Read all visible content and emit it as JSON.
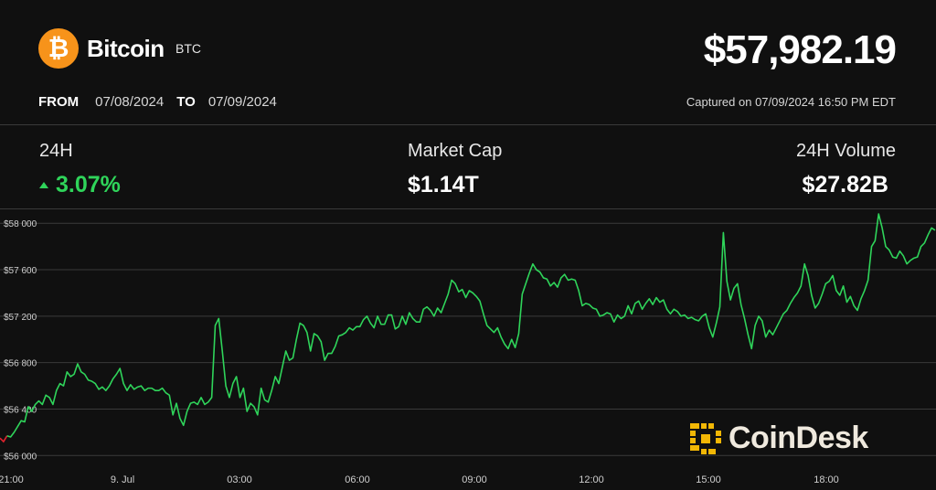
{
  "coin": {
    "name": "Bitcoin",
    "ticker": "BTC",
    "logo_symbol": "₿",
    "logo_color": "#f7931a"
  },
  "price": "$57,982.19",
  "range": {
    "from_label": "FROM",
    "from_date": "07/08/2024",
    "to_label": "TO",
    "to_date": "07/09/2024"
  },
  "captured": "Captured on 07/09/2024 16:50 PM EDT",
  "stats": {
    "change_label": "24H",
    "change_value": "3.07%",
    "market_cap_label": "Market Cap",
    "market_cap_value": "$1.14T",
    "volume_label": "24H Volume",
    "volume_value": "$27.82B"
  },
  "watermark": {
    "text": "CoinDesk",
    "icon": "coindesk-logo-icon",
    "color": "#f2b705"
  },
  "chart_data": {
    "type": "line",
    "title": "",
    "xlabel": "",
    "ylabel": "",
    "x_ticks": [
      "21:00",
      "9. Jul",
      "03:00",
      "06:00",
      "09:00",
      "12:00",
      "15:00",
      "18:00"
    ],
    "y_ticks": [
      "$56 000",
      "$56 400",
      "$56 800",
      "$57 200",
      "$57 600",
      "$58 000"
    ],
    "ylim": [
      55900,
      58120
    ],
    "grid": "horizontal",
    "colors": {
      "up": "#2fd45a",
      "down": "#e0232e",
      "grid": "#3a3a3a",
      "tick": "#cfcfcf"
    },
    "series": [
      {
        "values": [
          56150,
          56120,
          56170,
          56160,
          56200,
          56250,
          56300,
          56290,
          56420,
          56380,
          56440,
          56470,
          56440,
          56520,
          56500,
          56440,
          56560,
          56620,
          56600,
          56720,
          56680,
          56700,
          56790,
          56720,
          56700,
          56650,
          56640,
          56620,
          56570,
          56590,
          56560,
          56600,
          56660,
          56700,
          56750,
          56620,
          56560,
          56610,
          56570,
          56590,
          56600,
          56560,
          56580,
          56580,
          56560,
          56560,
          56580,
          56540,
          56520,
          56350,
          56450,
          56320,
          56260,
          56380,
          56450,
          56460,
          56440,
          56500,
          56440,
          56460,
          56500,
          57120,
          57180,
          56900,
          56600,
          56500,
          56620,
          56680,
          56500,
          56580,
          56380,
          56450,
          56420,
          56350,
          56580,
          56480,
          56460,
          56560,
          56680,
          56620,
          56760,
          56900,
          56820,
          56840,
          57000,
          57140,
          57120,
          57060,
          56900,
          57050,
          57030,
          56980,
          56820,
          56880,
          56880,
          56940,
          57030,
          57040,
          57060,
          57100,
          57080,
          57110,
          57110,
          57170,
          57200,
          57140,
          57100,
          57200,
          57130,
          57130,
          57210,
          57210,
          57090,
          57110,
          57200,
          57130,
          57230,
          57180,
          57150,
          57150,
          57260,
          57280,
          57250,
          57200,
          57270,
          57230,
          57310,
          57390,
          57510,
          57480,
          57410,
          57430,
          57360,
          57420,
          57400,
          57370,
          57330,
          57220,
          57120,
          57090,
          57060,
          57100,
          57020,
          56960,
          56920,
          57000,
          56930,
          57050,
          57390,
          57480,
          57570,
          57650,
          57600,
          57580,
          57530,
          57520,
          57460,
          57490,
          57450,
          57530,
          57560,
          57510,
          57520,
          57510,
          57420,
          57290,
          57310,
          57300,
          57270,
          57260,
          57200,
          57210,
          57230,
          57220,
          57150,
          57210,
          57180,
          57200,
          57290,
          57220,
          57310,
          57330,
          57260,
          57310,
          57350,
          57300,
          57360,
          57320,
          57340,
          57260,
          57220,
          57260,
          57240,
          57200,
          57210,
          57180,
          57190,
          57170,
          57160,
          57200,
          57220,
          57100,
          57020,
          57140,
          57280,
          57920,
          57500,
          57340,
          57440,
          57480,
          57300,
          57180,
          57040,
          56920,
          57120,
          57200,
          57160,
          57020,
          57080,
          57040,
          57100,
          57160,
          57220,
          57250,
          57310,
          57360,
          57400,
          57460,
          57650,
          57550,
          57380,
          57270,
          57310,
          57390,
          57480,
          57500,
          57550,
          57420,
          57380,
          57460,
          57320,
          57370,
          57290,
          57250,
          57350,
          57420,
          57510,
          57800,
          57850,
          58080,
          57960,
          57800,
          57770,
          57710,
          57700,
          57760,
          57720,
          57650,
          57680,
          57700,
          57710,
          57800,
          57830,
          57900,
          57960,
          57940
        ]
      }
    ]
  }
}
